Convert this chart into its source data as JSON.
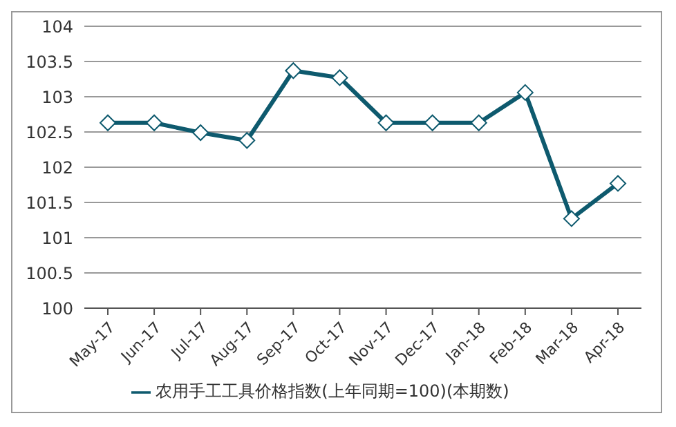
{
  "chart_data": {
    "type": "line",
    "categories": [
      "May-17",
      "Jun-17",
      "Jul-17",
      "Aug-17",
      "Sep-17",
      "Oct-17",
      "Nov-17",
      "Dec-17",
      "Jan-18",
      "Feb-18",
      "Mar-18",
      "Apr-18"
    ],
    "series": [
      {
        "name": "农用手工工具价格指数(上年同期=100)(本期数)",
        "color": "#0e5a6e",
        "values": [
          102.63,
          102.63,
          102.49,
          102.38,
          103.37,
          103.27,
          102.63,
          102.63,
          102.63,
          103.06,
          101.27,
          101.77
        ]
      }
    ],
    "ylim": [
      100,
      104
    ],
    "yticks": [
      100,
      100.5,
      101,
      101.5,
      102,
      102.5,
      103,
      103.5,
      104
    ],
    "grid": "y",
    "legend": "bottom",
    "marker": "diamond",
    "line_style": "solid"
  }
}
